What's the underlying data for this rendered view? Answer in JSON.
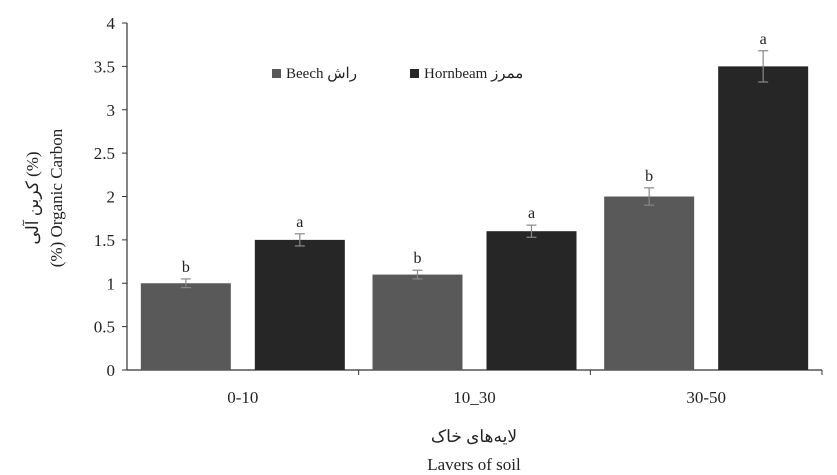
{
  "chart_data": {
    "type": "bar",
    "categories": [
      "0-10",
      "10_30",
      "30-50"
    ],
    "series": [
      {
        "name": "Beech راش",
        "color": "#595959",
        "values": [
          1.0,
          1.1,
          2.0
        ],
        "errors": [
          0.05,
          0.05,
          0.1
        ],
        "labels": [
          "b",
          "b",
          "b"
        ]
      },
      {
        "name": "Hornbeam ممرز",
        "color": "#262626",
        "values": [
          1.5,
          1.6,
          3.5
        ],
        "errors": [
          0.07,
          0.07,
          0.18
        ],
        "labels": [
          "a",
          "a",
          "a"
        ]
      }
    ],
    "ylim": [
      0,
      4
    ],
    "yticks": [
      "0",
      "0.5",
      "1",
      "1.5",
      "2",
      "2.5",
      "3",
      "3.5",
      "4"
    ],
    "ylabel": "(%) Organic Carbon",
    "ylabel_fa": "کربن آلی (%)",
    "xlabel": "Lavers of soil",
    "xlabel_fa": "لایه‌های خاک",
    "legend_position": "top-center",
    "grid": false
  }
}
